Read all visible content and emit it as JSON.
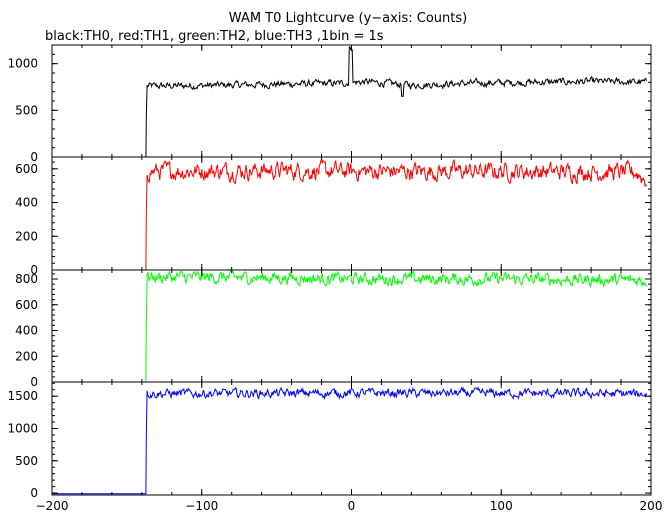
{
  "chart_data": {
    "type": "line",
    "title": "WAM T0 Lightcurve (y−axis: Counts)",
    "subtitle": "black:TH0, red:TH1, green:TH2, blue:TH3 ,1bin = 1s",
    "xlabel": "",
    "ylabel": "",
    "xlim": [
      -200,
      200
    ],
    "x_ticks": [
      -200,
      -100,
      0,
      100,
      200
    ],
    "x_tick_labels": [
      "−200",
      "−100",
      "0",
      "100",
      "200"
    ],
    "grid": false,
    "bin_seconds": 1,
    "panels": [
      {
        "name": "TH0",
        "color": "#000000",
        "ylim": [
          0,
          1200
        ],
        "y_ticks": [
          0,
          500,
          1000
        ],
        "y_tick_labels": [
          "0",
          "500",
          "1000"
        ],
        "pre_trigger_level": 0,
        "onset_x": -137,
        "x_knots": [
          -137,
          -100,
          -50,
          -5,
          0,
          10,
          40,
          80,
          120,
          160,
          197
        ],
        "y_knots": [
          760,
          765,
          780,
          790,
          800,
          805,
          770,
          790,
          800,
          810,
          800
        ],
        "noise_amp": 30,
        "spikes": [
          {
            "x": -1,
            "y": 1180
          },
          {
            "x": 0,
            "y": 1150
          },
          {
            "x": 34,
            "y": 650
          }
        ]
      },
      {
        "name": "TH1",
        "color": "#ff0000",
        "ylim": [
          0,
          670
        ],
        "y_ticks": [
          0,
          200,
          400,
          600
        ],
        "y_tick_labels": [
          "0",
          "200",
          "400",
          "600"
        ],
        "pre_trigger_level": 0,
        "onset_x": -137,
        "x_knots": [
          -137,
          -50,
          0,
          100,
          190,
          197
        ],
        "y_knots": [
          585,
          590,
          585,
          585,
          580,
          530
        ],
        "noise_amp": 42,
        "spikes": []
      },
      {
        "name": "TH2",
        "color": "#00ff00",
        "ylim": [
          0,
          870
        ],
        "y_ticks": [
          0,
          200,
          400,
          600,
          800
        ],
        "y_tick_labels": [
          "0",
          "200",
          "400",
          "600",
          "800"
        ],
        "pre_trigger_level": 0,
        "onset_x": -137,
        "x_knots": [
          -137,
          -50,
          0,
          100,
          197
        ],
        "y_knots": [
          815,
          810,
          800,
          800,
          790
        ],
        "noise_amp": 38,
        "spikes": []
      },
      {
        "name": "TH3",
        "color": "#0000ff",
        "ylim": [
          -30,
          1720
        ],
        "y_ticks": [
          0,
          500,
          1000,
          1500
        ],
        "y_tick_labels": [
          "0",
          "500",
          "1000",
          "1500"
        ],
        "pre_trigger_level": -10,
        "onset_x": -137,
        "x_knots": [
          -137,
          -50,
          0,
          100,
          197
        ],
        "y_knots": [
          1540,
          1545,
          1550,
          1545,
          1535
        ],
        "noise_amp": 55,
        "spikes": []
      }
    ]
  }
}
